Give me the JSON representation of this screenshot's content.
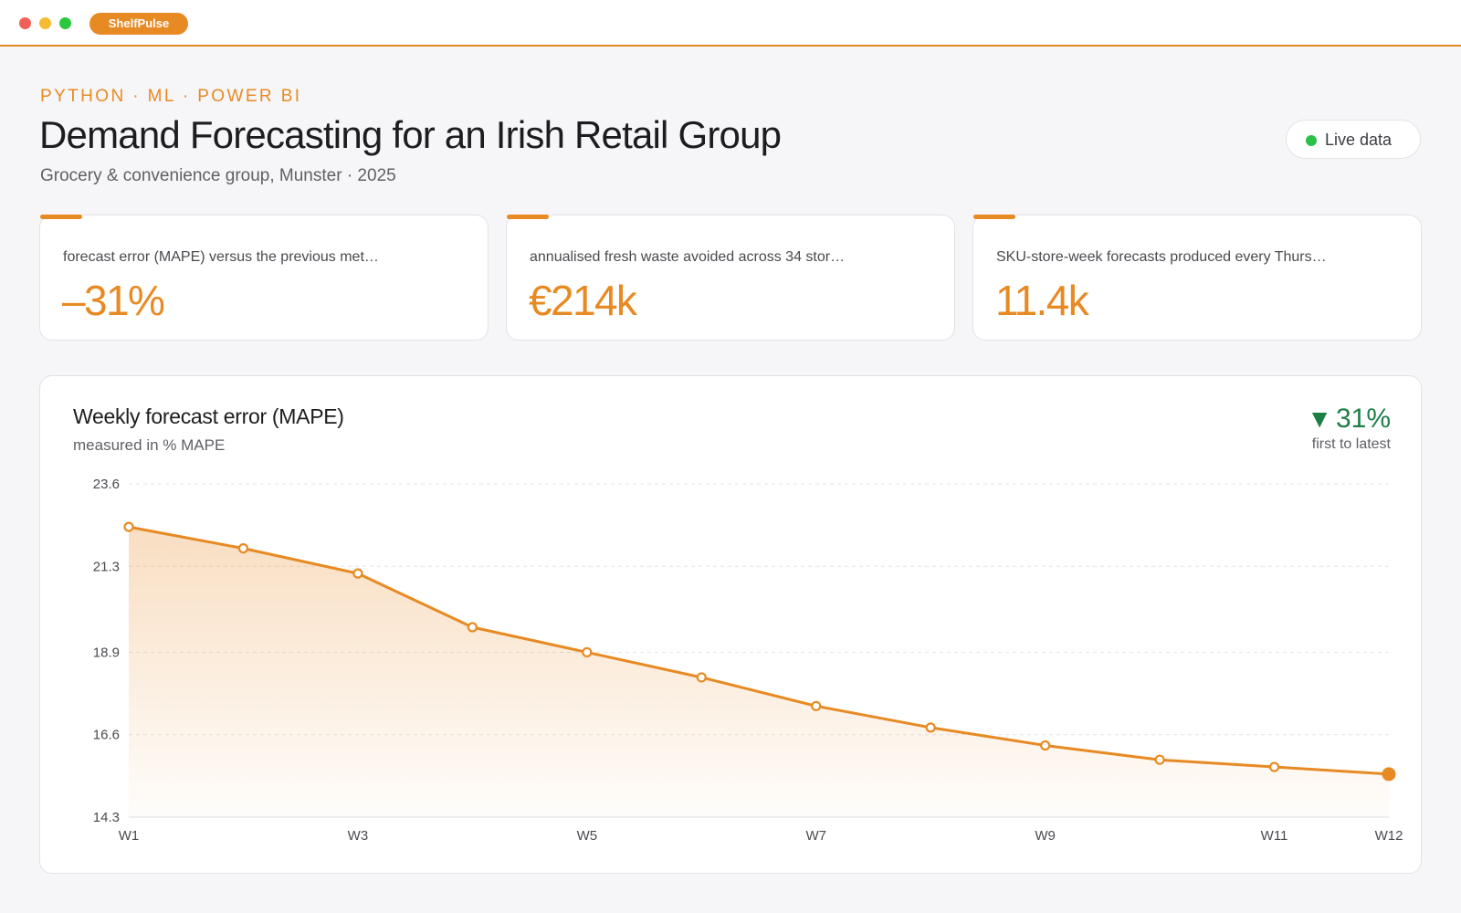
{
  "window": {
    "app_name": "ShelfPulse"
  },
  "header": {
    "eyebrow": "PYTHON · ML · POWER BI",
    "title": "Demand Forecasting for an Irish Retail Group",
    "subtitle": "Grocery & convenience group, Munster · 2025",
    "live_label": "Live data",
    "live_color": "#2bc048"
  },
  "kpis": [
    {
      "label": "forecast error (MAPE) versus the previous met…",
      "value": "–31%"
    },
    {
      "label": "annualised fresh waste avoided across 34 stor…",
      "value": "€214k"
    },
    {
      "label": "SKU-store-week forecasts produced every Thurs…",
      "value": "11.4k"
    }
  ],
  "colors": {
    "accent": "#e88a23",
    "positive": "#1e7f46"
  },
  "chart_card": {
    "title": "Weekly forecast error (MAPE)",
    "subtitle": "measured in % MAPE",
    "delta_icon": "triangle-down-icon",
    "delta_value": "31%",
    "delta_note": "first to latest"
  },
  "chart_data": {
    "type": "area",
    "x": [
      "W1",
      "W2",
      "W3",
      "W4",
      "W5",
      "W6",
      "W7",
      "W8",
      "W9",
      "W10",
      "W11",
      "W12"
    ],
    "x_tick_labels": [
      "W1",
      "W3",
      "W5",
      "W7",
      "W9",
      "W11",
      "W12"
    ],
    "values": [
      22.4,
      21.8,
      21.1,
      19.6,
      18.9,
      18.2,
      17.4,
      16.8,
      16.3,
      15.9,
      15.7,
      15.5
    ],
    "ylim": [
      14.3,
      23.6
    ],
    "y_ticks": [
      "23.6",
      "21.3",
      "18.9",
      "16.6",
      "14.3"
    ],
    "grid": true,
    "legend": "none",
    "title": "Weekly forecast error (MAPE)",
    "ylabel": "% MAPE"
  }
}
